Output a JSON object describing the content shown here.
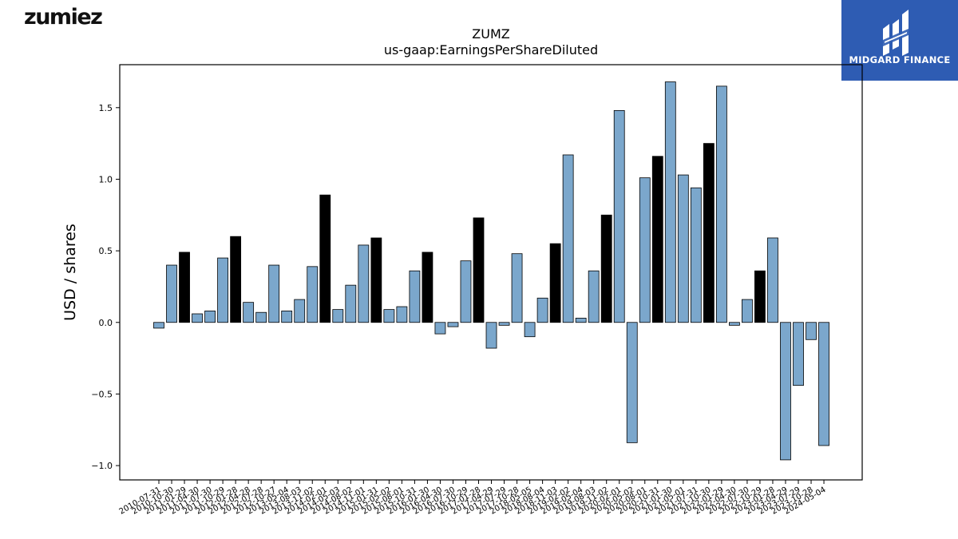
{
  "header": {
    "left_logo_text": "zumiez",
    "right_logo_text": "MIDGARD FINANCE"
  },
  "colors": {
    "bar_default": "#7ba7cc",
    "bar_highlight": "#000000",
    "logo_bg": "#2e5cb3"
  },
  "icons": {
    "right_logo": "midgard-logo-icon"
  },
  "chart_data": {
    "type": "bar",
    "title": "ZUMZ",
    "subtitle": "us-gaap:EarningsPerShareDiluted",
    "xlabel": "",
    "ylabel": "USD / shares",
    "ylim": [
      -1.1,
      1.8
    ],
    "yticks": [
      -1.0,
      -0.5,
      0.0,
      0.5,
      1.0,
      1.5
    ],
    "ytick_labels": [
      "−1.0",
      "−0.5",
      "0.0",
      "0.5",
      "1.0",
      "1.5"
    ],
    "grid": false,
    "categories": [
      "2010-07-31",
      "2010-10-30",
      "2011-01-29",
      "2011-04-30",
      "2011-07-30",
      "2011-10-29",
      "2012-01-28",
      "2012-04-28",
      "2012-07-28",
      "2012-10-27",
      "2013-05-04",
      "2013-08-03",
      "2013-11-02",
      "2014-02-01",
      "2014-05-03",
      "2014-08-02",
      "2014-11-01",
      "2015-01-31",
      "2015-05-02",
      "2015-08-01",
      "2015-10-31",
      "2016-01-30",
      "2016-04-30",
      "2016-07-30",
      "2016-10-29",
      "2017-01-28",
      "2017-04-29",
      "2017-07-29",
      "2017-10-28",
      "2018-05-05",
      "2018-08-04",
      "2018-11-03",
      "2019-02-02",
      "2019-05-04",
      "2019-08-03",
      "2019-11-02",
      "2020-02-01",
      "2020-05-02",
      "2020-08-01",
      "2020-10-31",
      "2021-01-30",
      "2021-05-01",
      "2021-07-31",
      "2021-10-30",
      "2022-01-29",
      "2022-04-30",
      "2022-07-30",
      "2022-10-29",
      "2023-01-28",
      "2023-04-29",
      "2023-07-29",
      "2023-10-28",
      "2024-05-04"
    ],
    "values": [
      -0.04,
      0.4,
      0.49,
      0.06,
      0.08,
      0.45,
      0.6,
      0.14,
      0.07,
      0.4,
      0.08,
      0.16,
      0.39,
      0.89,
      0.09,
      0.26,
      0.54,
      0.59,
      0.09,
      0.11,
      0.36,
      0.49,
      -0.08,
      -0.03,
      0.43,
      0.73,
      -0.18,
      -0.02,
      0.48,
      -0.1,
      0.17,
      0.55,
      1.17,
      0.03,
      0.36,
      0.75,
      1.48,
      -0.84,
      1.01,
      1.16,
      1.68,
      1.03,
      0.94,
      1.25,
      1.65,
      -0.02,
      0.16,
      0.36,
      0.59,
      -0.96,
      -0.44,
      -0.12,
      -0.86
    ],
    "highlight": [
      false,
      false,
      true,
      false,
      false,
      false,
      true,
      false,
      false,
      false,
      false,
      false,
      false,
      true,
      false,
      false,
      false,
      true,
      false,
      false,
      false,
      true,
      false,
      false,
      false,
      true,
      false,
      false,
      false,
      false,
      false,
      true,
      false,
      false,
      false,
      true,
      false,
      false,
      false,
      true,
      false,
      false,
      false,
      true,
      false,
      false,
      false,
      true,
      false,
      false,
      false,
      false,
      false
    ]
  }
}
